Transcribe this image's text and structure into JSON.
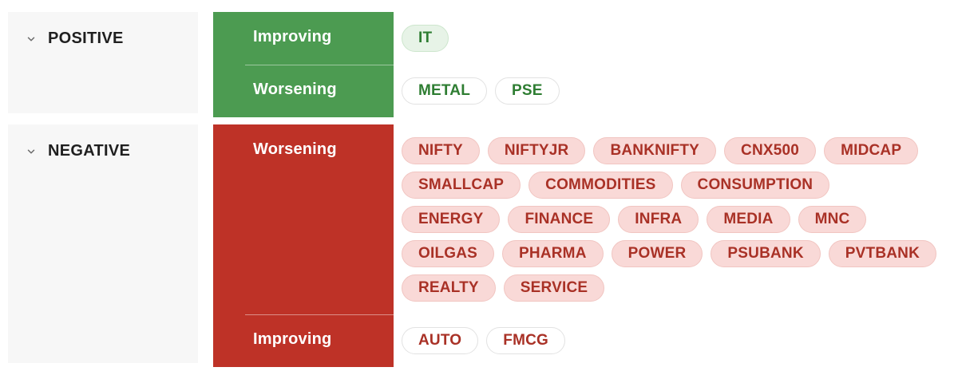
{
  "colors": {
    "page_bg": "#ffffff",
    "panel_bg": "#f7f7f7",
    "section_label": "#1f1f1f",
    "chevron": "#6b6b6b",
    "block_divider": "rgba(255,255,255,0.45)",
    "pill_styles": {
      "green-tinted": {
        "bg": "#e7f3e7",
        "border": "#cde6cd",
        "text": "#2e7d32"
      },
      "green-outline": {
        "bg": "#ffffff",
        "border": "#e2e2e2",
        "text": "#2e7d32"
      },
      "red-tinted": {
        "bg": "#f9d9d7",
        "border": "#f1c5c1",
        "text": "#a93126"
      },
      "red-outline": {
        "bg": "#ffffff",
        "border": "#e2e2e2",
        "text": "#a93126"
      }
    }
  },
  "sections": [
    {
      "id": "positive",
      "label": "POSITIVE",
      "block_color": "#4c9b51",
      "rows": [
        {
          "label": "Improving",
          "pill_style": "green-tinted",
          "lines": [
            [
              "IT"
            ]
          ]
        },
        {
          "label": "Worsening",
          "pill_style": "green-outline",
          "lines": [
            [
              "METAL",
              "PSE"
            ]
          ]
        }
      ]
    },
    {
      "id": "negative",
      "label": "NEGATIVE",
      "block_color": "#be3227",
      "rows": [
        {
          "label": "Worsening",
          "pill_style": "red-tinted",
          "lines": [
            [
              "NIFTY",
              "NIFTYJR",
              "BANKNIFTY",
              "CNX500",
              "MIDCAP"
            ],
            [
              "SMALLCAP",
              "COMMODITIES",
              "CONSUMPTION"
            ],
            [
              "ENERGY",
              "FINANCE",
              "INFRA",
              "MEDIA",
              "MNC"
            ],
            [
              "OILGAS",
              "PHARMA",
              "POWER",
              "PSUBANK",
              "PVTBANK"
            ],
            [
              "REALTY",
              "SERVICE"
            ]
          ]
        },
        {
          "label": "Improving",
          "pill_style": "red-outline",
          "lines": [
            [
              "AUTO",
              "FMCG"
            ]
          ]
        }
      ]
    }
  ]
}
